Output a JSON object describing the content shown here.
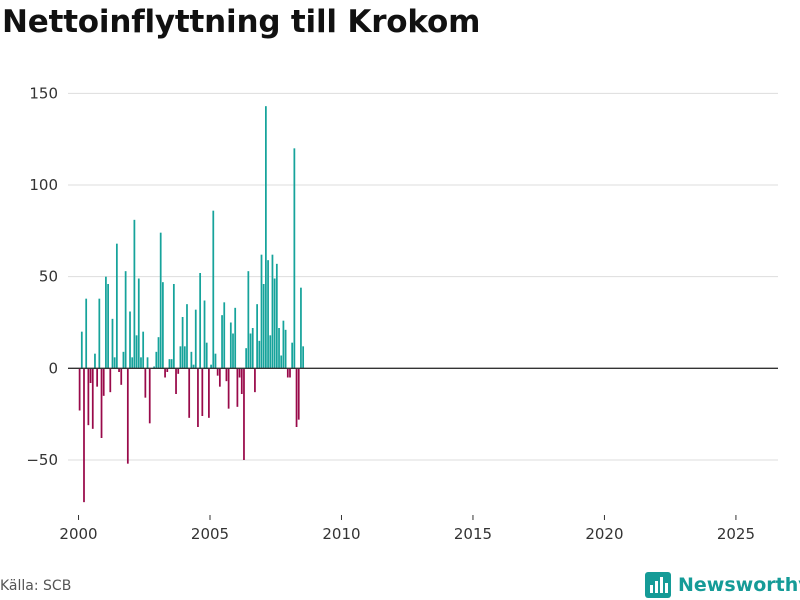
{
  "title": "Nettoinflyttning till Krokom",
  "source": "Källa: SCB",
  "brand": "Newsworthy",
  "colors": {
    "positive": "#16a39b",
    "negative": "#990a4a",
    "grid": "#dddddd",
    "axis": "#333333",
    "brand": "#159b97"
  },
  "chart_data": {
    "type": "bar",
    "title": "Nettoinflyttning till Krokom",
    "xlabel": "",
    "ylabel": "",
    "xlim": [
      1999.6,
      2026.6
    ],
    "ylim": [
      -80,
      160
    ],
    "yticks": [
      -50,
      0,
      50,
      100,
      150
    ],
    "ytick_labels": [
      "−50",
      "0",
      "50",
      "100",
      "150"
    ],
    "xticks": [
      2000,
      2005,
      2010,
      2015,
      2020,
      2025
    ],
    "xtick_labels": [
      "2000",
      "2005",
      "2010",
      "2015",
      "2020",
      "2025"
    ],
    "bar_width_months": 0.8,
    "start": "2000-01",
    "frequency": "monthly",
    "values": [
      -23,
      20,
      -73,
      38,
      -31,
      -8,
      -33,
      8,
      -10,
      38,
      -38,
      -15,
      50,
      46,
      -13,
      27,
      6,
      68,
      -2,
      -9,
      9,
      53,
      -52,
      31,
      6,
      81,
      18,
      49,
      6,
      20,
      -16,
      6,
      -30,
      0,
      1,
      9,
      17,
      74,
      47,
      -5,
      -2,
      5,
      5,
      46,
      -14,
      -3,
      12,
      28,
      12,
      35,
      -27,
      9,
      2,
      32,
      -32,
      52,
      -26,
      37,
      14,
      -27,
      2,
      86,
      8,
      -4,
      -10,
      29,
      36,
      -7,
      -22,
      25,
      19,
      33,
      -21,
      -5,
      -14,
      -50,
      11,
      53,
      19,
      22,
      -13,
      35,
      15,
      62,
      46,
      143,
      59,
      18,
      62,
      49,
      57,
      22,
      7,
      26,
      21,
      -5,
      -5,
      14,
      120,
      -32,
      -28,
      44,
      12
    ]
  }
}
